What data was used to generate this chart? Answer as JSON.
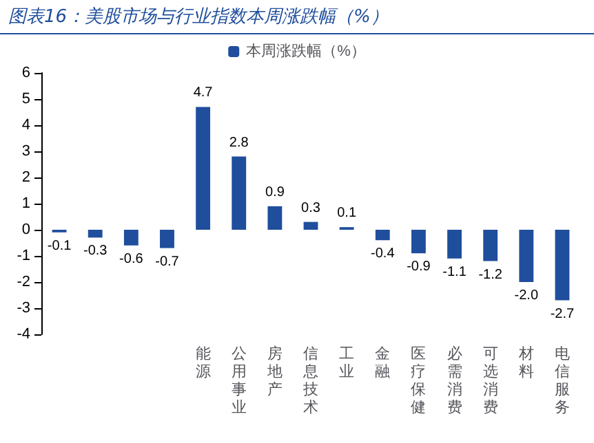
{
  "chart_data": {
    "type": "bar",
    "title": "图表16：美股市场与行业指数本周涨跌幅（%）",
    "categories": [
      null,
      null,
      null,
      null,
      "能源",
      "公用事业",
      "房地产",
      "信息技术",
      "工业",
      "金融",
      "医疗保健",
      "必需消费",
      "可选消费",
      "材料",
      "电信服务"
    ],
    "series": [
      {
        "name": "本周涨跌幅（%）",
        "color": "#1f4e9c",
        "values": [
          -0.1,
          -0.3,
          -0.6,
          -0.7,
          4.7,
          2.8,
          0.9,
          0.3,
          0.1,
          -0.4,
          -0.9,
          -1.1,
          -1.2,
          -2.0,
          -2.7
        ],
        "value_labels": [
          "-0.1",
          "-0.3",
          "-0.6",
          "-0.7",
          "4.7",
          "2.8",
          "0.9",
          "0.3",
          "0.1",
          "-0.4",
          "-0.9",
          "-1.1",
          "-1.2",
          "-2.0",
          "-2.7"
        ]
      }
    ],
    "ylim": [
      -4,
      6
    ],
    "yticks": [
      -4,
      -3,
      -2,
      -1,
      0,
      1,
      2,
      3,
      4,
      5,
      6
    ],
    "grid": false,
    "legend": "top"
  }
}
